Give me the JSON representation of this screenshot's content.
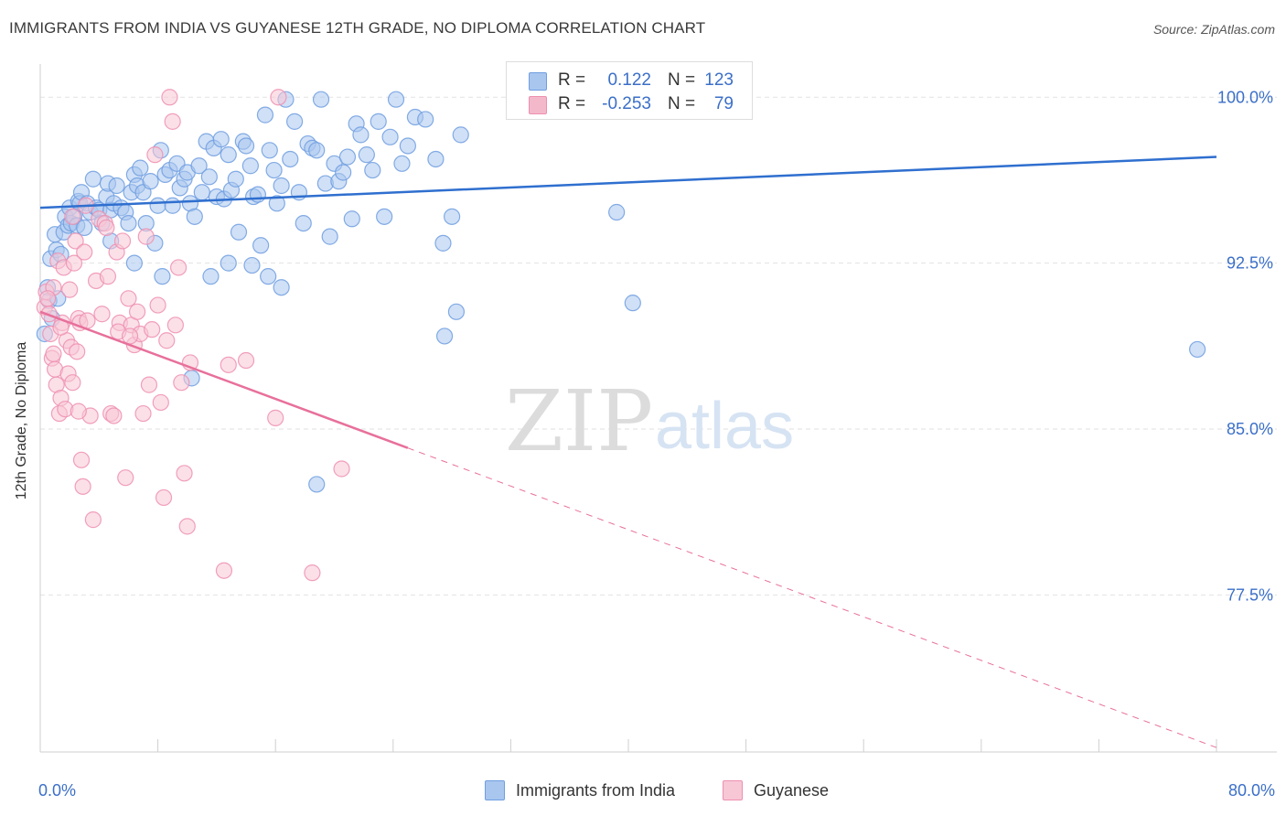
{
  "title": "IMMIGRANTS FROM INDIA VS GUYANESE 12TH GRADE, NO DIPLOMA CORRELATION CHART",
  "source": "Source: ZipAtlas.com",
  "watermark": {
    "zip": "ZIP",
    "atlas": "atlas"
  },
  "legend_stats": {
    "rows": [
      {
        "r_label": "R =",
        "r_value": "0.122",
        "n_label": "N =",
        "n_value": "123",
        "color": "#a9c6ef"
      },
      {
        "r_label": "R =",
        "r_value": "-0.253",
        "n_label": "N =",
        "n_value": "79",
        "color": "#f4b8cb"
      }
    ]
  },
  "legend": {
    "items": [
      {
        "label": "Immigrants from India",
        "color": "#a9c6ef",
        "stroke": "#6f9ee0"
      },
      {
        "label": "Guyanese",
        "color": "#f7c7d6",
        "stroke": "#ee8fb0"
      }
    ]
  },
  "chart_data": {
    "type": "scatter",
    "title": "IMMIGRANTS FROM INDIA VS GUYANESE 12TH GRADE, NO DIPLOMA CORRELATION CHART",
    "xlabel": "",
    "ylabel": "12th Grade, No Diploma",
    "xlim": [
      0,
      80
    ],
    "ylim": [
      70.4,
      101.5
    ],
    "x_tick_labels": [
      "0.0%",
      "80.0%"
    ],
    "y_ticks": [
      77.5,
      85.0,
      92.5,
      100.0
    ],
    "y_tick_labels": [
      "77.5%",
      "85.0%",
      "92.5%",
      "100.0%"
    ],
    "grid": true,
    "series": [
      {
        "name": "Immigrants from India",
        "color": "#6f9ee0",
        "fill": "#a9c6ef",
        "trend": {
          "x": [
            0,
            80
          ],
          "y": [
            95.0,
            97.3
          ],
          "dashed_from": null
        },
        "points": [
          [
            0.3,
            89.3
          ],
          [
            0.5,
            91.4
          ],
          [
            0.6,
            90.8
          ],
          [
            0.7,
            92.7
          ],
          [
            0.8,
            90.0
          ],
          [
            1.0,
            93.8
          ],
          [
            1.1,
            93.1
          ],
          [
            1.2,
            90.9
          ],
          [
            1.4,
            92.9
          ],
          [
            1.6,
            93.9
          ],
          [
            1.7,
            94.6
          ],
          [
            1.9,
            94.2
          ],
          [
            2.0,
            95.0
          ],
          [
            2.1,
            94.3
          ],
          [
            2.3,
            94.6
          ],
          [
            2.5,
            94.2
          ],
          [
            2.6,
            95.3
          ],
          [
            2.7,
            95.2
          ],
          [
            2.8,
            95.7
          ],
          [
            3.0,
            94.1
          ],
          [
            3.2,
            95.2
          ],
          [
            3.4,
            94.8
          ],
          [
            3.6,
            96.3
          ],
          [
            3.8,
            95.0
          ],
          [
            4.0,
            94.9
          ],
          [
            4.2,
            94.3
          ],
          [
            4.5,
            95.5
          ],
          [
            4.6,
            96.1
          ],
          [
            4.8,
            94.9
          ],
          [
            5.0,
            95.2
          ],
          [
            5.2,
            96.0
          ],
          [
            5.5,
            95.0
          ],
          [
            5.8,
            94.8
          ],
          [
            6.0,
            94.3
          ],
          [
            6.2,
            95.7
          ],
          [
            6.4,
            96.5
          ],
          [
            6.6,
            96.0
          ],
          [
            6.8,
            96.8
          ],
          [
            7.0,
            95.7
          ],
          [
            7.2,
            94.3
          ],
          [
            7.5,
            96.2
          ],
          [
            7.8,
            93.4
          ],
          [
            8.0,
            95.1
          ],
          [
            8.2,
            97.6
          ],
          [
            8.5,
            96.5
          ],
          [
            8.8,
            96.7
          ],
          [
            9.0,
            95.1
          ],
          [
            9.3,
            97.0
          ],
          [
            9.5,
            95.9
          ],
          [
            9.8,
            96.3
          ],
          [
            10.0,
            96.6
          ],
          [
            10.2,
            95.2
          ],
          [
            10.5,
            94.6
          ],
          [
            10.8,
            96.9
          ],
          [
            11.0,
            95.7
          ],
          [
            11.3,
            98.0
          ],
          [
            11.5,
            96.4
          ],
          [
            11.8,
            97.7
          ],
          [
            12.0,
            95.5
          ],
          [
            12.3,
            98.1
          ],
          [
            12.5,
            95.4
          ],
          [
            12.8,
            97.4
          ],
          [
            13.0,
            95.8
          ],
          [
            13.3,
            96.3
          ],
          [
            13.5,
            93.9
          ],
          [
            13.8,
            98.0
          ],
          [
            14.0,
            97.8
          ],
          [
            14.3,
            96.9
          ],
          [
            14.5,
            95.5
          ],
          [
            14.8,
            95.6
          ],
          [
            15.0,
            93.3
          ],
          [
            15.3,
            99.2
          ],
          [
            15.6,
            97.6
          ],
          [
            15.9,
            96.7
          ],
          [
            16.1,
            95.2
          ],
          [
            16.4,
            96.0
          ],
          [
            16.7,
            99.9
          ],
          [
            17.0,
            97.2
          ],
          [
            17.3,
            98.9
          ],
          [
            17.6,
            95.7
          ],
          [
            17.9,
            94.3
          ],
          [
            18.2,
            97.9
          ],
          [
            18.5,
            97.7
          ],
          [
            18.8,
            97.6
          ],
          [
            19.1,
            99.9
          ],
          [
            19.4,
            96.1
          ],
          [
            19.7,
            93.7
          ],
          [
            20.0,
            97.0
          ],
          [
            20.3,
            96.2
          ],
          [
            20.6,
            96.6
          ],
          [
            20.9,
            97.3
          ],
          [
            21.2,
            94.5
          ],
          [
            21.5,
            98.8
          ],
          [
            21.8,
            98.3
          ],
          [
            22.2,
            97.4
          ],
          [
            22.6,
            96.7
          ],
          [
            23.0,
            98.9
          ],
          [
            23.4,
            94.6
          ],
          [
            23.8,
            98.2
          ],
          [
            24.2,
            99.9
          ],
          [
            24.6,
            97.0
          ],
          [
            25.0,
            97.8
          ],
          [
            25.5,
            99.1
          ],
          [
            26.2,
            99.0
          ],
          [
            26.9,
            97.2
          ],
          [
            27.4,
            93.4
          ],
          [
            28.0,
            94.6
          ],
          [
            28.3,
            90.3
          ],
          [
            27.5,
            89.2
          ],
          [
            28.6,
            98.3
          ],
          [
            39.2,
            94.8
          ],
          [
            40.3,
            90.7
          ],
          [
            78.7,
            88.6
          ],
          [
            10.3,
            87.3
          ],
          [
            18.8,
            82.5
          ],
          [
            6.4,
            92.5
          ],
          [
            4.8,
            93.5
          ],
          [
            8.3,
            91.9
          ],
          [
            11.6,
            91.9
          ],
          [
            15.5,
            91.9
          ],
          [
            16.4,
            91.4
          ],
          [
            14.4,
            92.4
          ],
          [
            12.8,
            92.5
          ]
        ]
      },
      {
        "name": "Guyanese",
        "color": "#ee8fb0",
        "fill": "#f7c7d6",
        "trend": {
          "x": [
            0,
            80
          ],
          "y": [
            90.3,
            70.6
          ],
          "dashed_from": 25.0
        },
        "points": [
          [
            0.3,
            90.5
          ],
          [
            0.4,
            91.2
          ],
          [
            0.6,
            90.2
          ],
          [
            0.7,
            89.3
          ],
          [
            0.8,
            88.2
          ],
          [
            0.9,
            91.4
          ],
          [
            1.0,
            87.7
          ],
          [
            1.1,
            87.0
          ],
          [
            1.2,
            92.6
          ],
          [
            1.3,
            85.7
          ],
          [
            1.4,
            86.4
          ],
          [
            1.5,
            89.8
          ],
          [
            1.6,
            92.3
          ],
          [
            1.7,
            85.9
          ],
          [
            1.8,
            89.0
          ],
          [
            1.9,
            87.5
          ],
          [
            2.0,
            91.3
          ],
          [
            2.1,
            88.7
          ],
          [
            2.2,
            94.6
          ],
          [
            2.3,
            92.5
          ],
          [
            2.4,
            93.5
          ],
          [
            2.5,
            88.5
          ],
          [
            2.6,
            90.0
          ],
          [
            2.7,
            89.8
          ],
          [
            2.8,
            83.6
          ],
          [
            2.9,
            82.4
          ],
          [
            3.0,
            93.0
          ],
          [
            3.2,
            89.9
          ],
          [
            3.4,
            85.6
          ],
          [
            3.6,
            80.9
          ],
          [
            3.8,
            91.7
          ],
          [
            4.0,
            94.5
          ],
          [
            4.2,
            90.2
          ],
          [
            4.4,
            94.3
          ],
          [
            4.6,
            91.9
          ],
          [
            4.8,
            85.7
          ],
          [
            5.0,
            85.6
          ],
          [
            5.2,
            93.0
          ],
          [
            5.4,
            89.8
          ],
          [
            5.6,
            93.5
          ],
          [
            5.8,
            82.8
          ],
          [
            6.0,
            90.9
          ],
          [
            6.2,
            89.7
          ],
          [
            6.4,
            88.8
          ],
          [
            6.6,
            90.3
          ],
          [
            6.8,
            89.3
          ],
          [
            7.0,
            85.7
          ],
          [
            7.2,
            93.7
          ],
          [
            7.4,
            87.0
          ],
          [
            7.6,
            89.5
          ],
          [
            7.8,
            97.4
          ],
          [
            8.0,
            90.6
          ],
          [
            8.2,
            86.2
          ],
          [
            8.4,
            81.9
          ],
          [
            8.6,
            89.0
          ],
          [
            8.8,
            100.0
          ],
          [
            9.0,
            98.9
          ],
          [
            9.2,
            89.7
          ],
          [
            9.4,
            92.3
          ],
          [
            9.6,
            87.1
          ],
          [
            9.8,
            83.0
          ],
          [
            10.0,
            80.6
          ],
          [
            10.2,
            88.0
          ],
          [
            12.5,
            78.6
          ],
          [
            12.8,
            87.9
          ],
          [
            14.0,
            88.1
          ],
          [
            16.0,
            85.5
          ],
          [
            16.2,
            100.0
          ],
          [
            18.5,
            78.5
          ],
          [
            20.5,
            83.2
          ],
          [
            0.5,
            90.9
          ],
          [
            0.9,
            88.4
          ],
          [
            1.4,
            89.6
          ],
          [
            2.2,
            87.1
          ],
          [
            3.1,
            95.1
          ],
          [
            4.5,
            94.1
          ],
          [
            5.3,
            89.4
          ],
          [
            6.1,
            89.2
          ],
          [
            2.6,
            85.8
          ]
        ]
      }
    ]
  }
}
